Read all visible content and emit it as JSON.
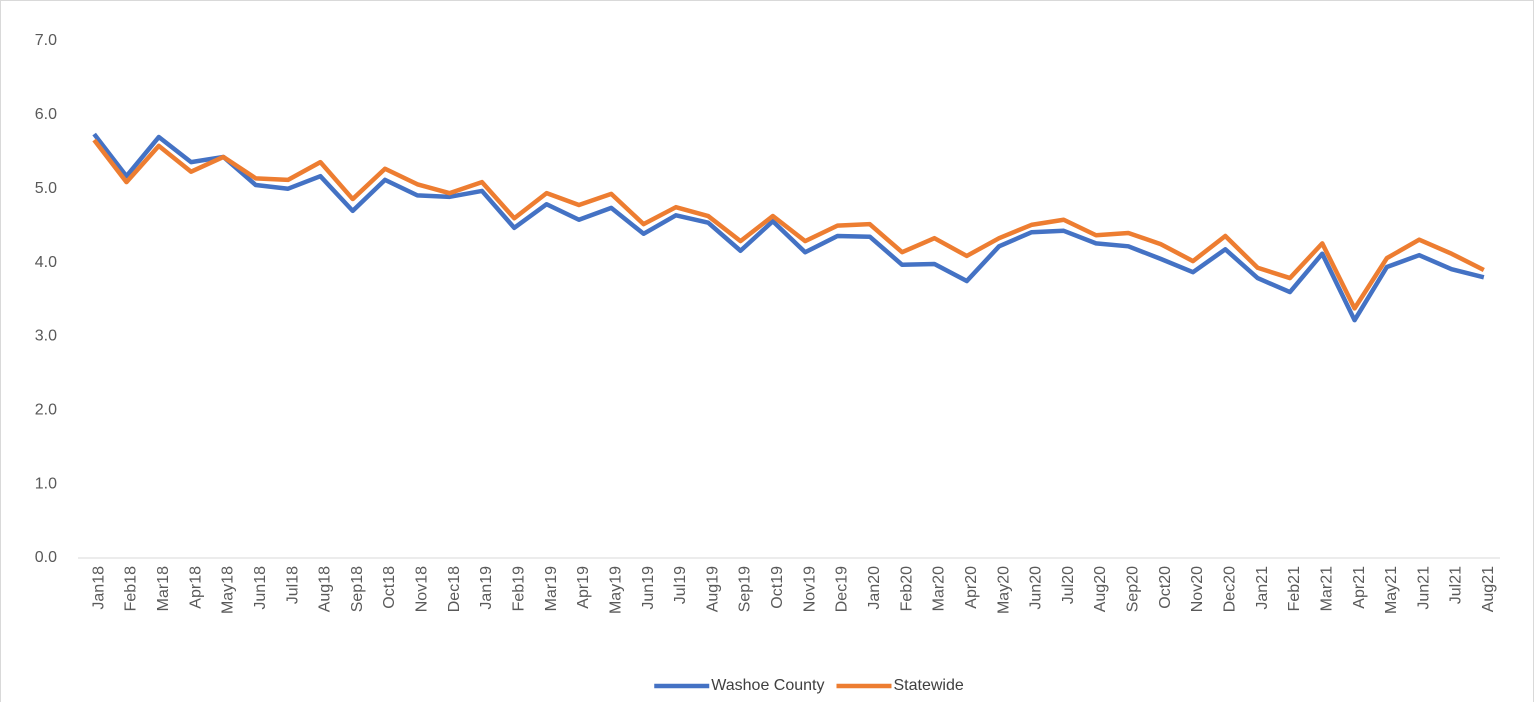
{
  "chart_data": {
    "type": "line",
    "categories": [
      "Jan18",
      "Feb18",
      "Mar18",
      "Apr18",
      "May18",
      "Jun18",
      "Jul18",
      "Aug18",
      "Sep18",
      "Oct18",
      "Nov18",
      "Dec18",
      "Jan19",
      "Feb19",
      "Mar19",
      "Apr19",
      "May19",
      "Jun19",
      "Jul19",
      "Aug19",
      "Sep19",
      "Oct19",
      "Nov19",
      "Dec19",
      "Jan20",
      "Feb20",
      "Mar20",
      "Apr20",
      "May20",
      "Jun20",
      "Jul20",
      "Aug20",
      "Sep20",
      "Oct20",
      "Nov20",
      "Dec20",
      "Jan21",
      "Feb21",
      "Mar21",
      "Apr21",
      "May21",
      "Jun21",
      "Jul21",
      "Aug21"
    ],
    "series": [
      {
        "name": "Washoe County",
        "color": "#4472c4",
        "values": [
          5.74,
          5.17,
          5.7,
          5.36,
          5.43,
          5.05,
          5.0,
          5.17,
          4.7,
          5.12,
          4.91,
          4.89,
          4.97,
          4.47,
          4.79,
          4.58,
          4.74,
          4.39,
          4.64,
          4.54,
          4.16,
          4.56,
          4.14,
          4.36,
          4.35,
          3.97,
          3.98,
          3.75,
          4.22,
          4.41,
          4.43,
          4.26,
          4.22,
          4.05,
          3.87,
          4.18,
          3.79,
          3.6,
          4.12,
          3.22,
          3.94,
          4.1,
          3.91,
          3.8
        ]
      },
      {
        "name": "Statewide",
        "color": "#ed7d31",
        "values": [
          5.66,
          5.09,
          5.58,
          5.23,
          5.43,
          5.14,
          5.12,
          5.36,
          4.86,
          5.27,
          5.06,
          4.94,
          5.09,
          4.6,
          4.94,
          4.78,
          4.93,
          4.52,
          4.75,
          4.63,
          4.29,
          4.63,
          4.29,
          4.5,
          4.52,
          4.14,
          4.33,
          4.09,
          4.33,
          4.51,
          4.58,
          4.37,
          4.4,
          4.25,
          4.02,
          4.36,
          3.93,
          3.79,
          4.26,
          3.38,
          4.06,
          4.31,
          4.12,
          3.9
        ]
      }
    ],
    "ylim": [
      0,
      7
    ],
    "yticks": [
      {
        "value": 0,
        "label": "0.0"
      },
      {
        "value": 1,
        "label": "1.0"
      },
      {
        "value": 2,
        "label": "2.0"
      },
      {
        "value": 3,
        "label": "3.0"
      },
      {
        "value": 4,
        "label": "4.0"
      },
      {
        "value": 5,
        "label": "5.0"
      },
      {
        "value": 6,
        "label": "6.0"
      },
      {
        "value": 7,
        "label": "7.0"
      }
    ],
    "grid": false,
    "legend": "bottom"
  }
}
